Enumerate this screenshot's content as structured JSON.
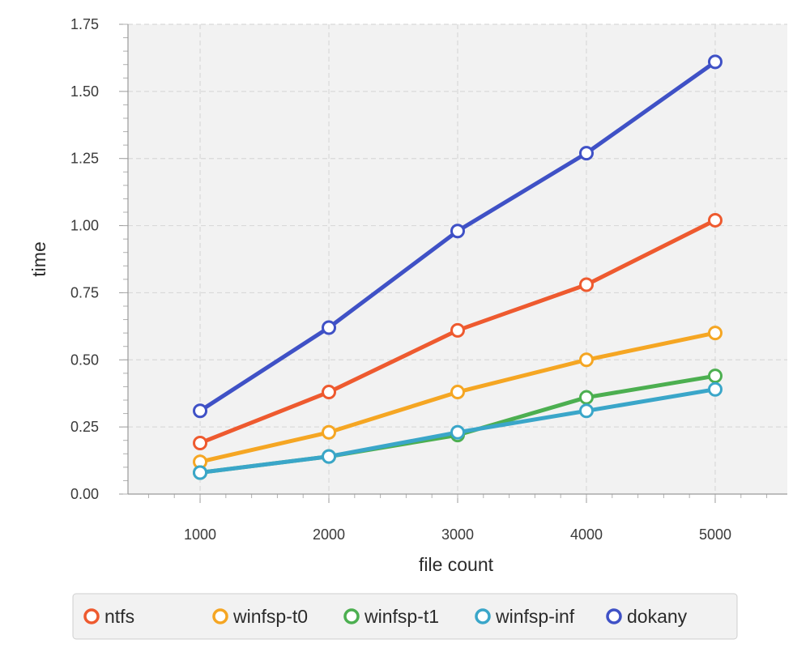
{
  "chart_data": {
    "type": "line",
    "xlabel": "file count",
    "ylabel": "time",
    "x": [
      1000,
      2000,
      3000,
      4000,
      5000
    ],
    "xlim": [
      440,
      5560
    ],
    "ylim": [
      0,
      1.75
    ],
    "xticks": [
      "1000",
      "2000",
      "3000",
      "4000",
      "5000"
    ],
    "yticks": [
      "0.00",
      "0.25",
      "0.50",
      "0.75",
      "1.00",
      "1.25",
      "1.50",
      "1.75"
    ],
    "grid": true,
    "legend_position": "bottom",
    "series": [
      {
        "name": "ntfs",
        "color": "#ee5a2f",
        "values": [
          0.19,
          0.38,
          0.61,
          0.78,
          1.02
        ]
      },
      {
        "name": "winfsp-t0",
        "color": "#f5a623",
        "values": [
          0.12,
          0.23,
          0.38,
          0.5,
          0.6
        ]
      },
      {
        "name": "winfsp-t1",
        "color": "#4caf50",
        "values": [
          0.08,
          0.14,
          0.22,
          0.36,
          0.44
        ]
      },
      {
        "name": "winfsp-inf",
        "color": "#3aa6c9",
        "values": [
          0.08,
          0.14,
          0.23,
          0.31,
          0.39
        ]
      },
      {
        "name": "dokany",
        "color": "#3f51c6",
        "values": [
          0.31,
          0.62,
          0.98,
          1.27,
          1.61
        ]
      }
    ]
  }
}
